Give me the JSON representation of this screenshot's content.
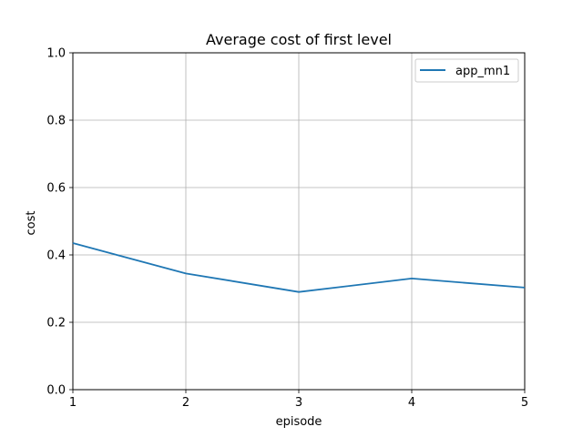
{
  "chart_data": {
    "type": "line",
    "title": "Average cost of first level",
    "xlabel": "episode",
    "ylabel": "cost",
    "xlim": [
      1,
      5
    ],
    "ylim": [
      0.0,
      1.0
    ],
    "x_ticks": [
      "1",
      "2",
      "3",
      "4",
      "5"
    ],
    "y_ticks": [
      "0.0",
      "0.2",
      "0.4",
      "0.6",
      "0.8",
      "1.0"
    ],
    "grid": true,
    "legend_position": "top-right",
    "series": [
      {
        "name": "app_mn1",
        "color": "#1f77b4",
        "x": [
          1,
          2,
          3,
          4,
          5
        ],
        "y": [
          0.435,
          0.345,
          0.29,
          0.33,
          0.303
        ]
      }
    ]
  }
}
